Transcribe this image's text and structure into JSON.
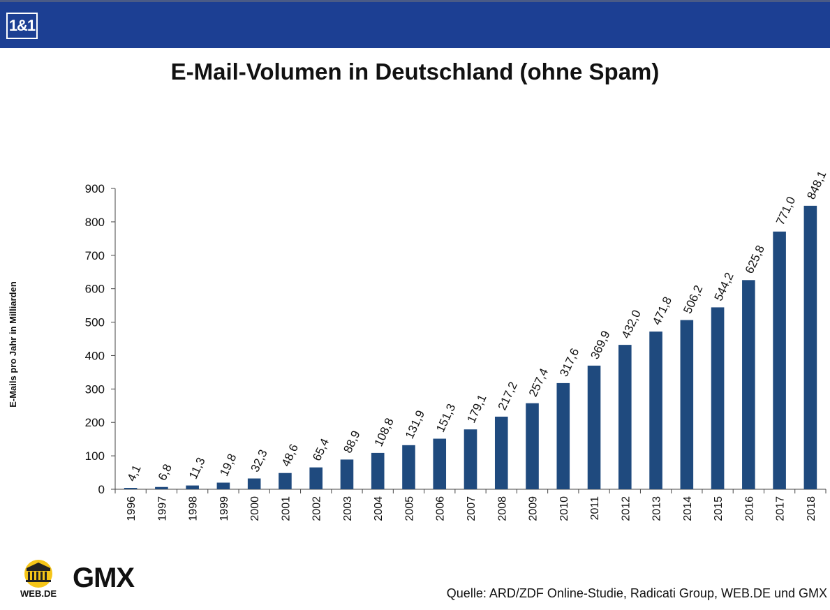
{
  "header": {
    "brand_logo": "1&1",
    "bar_color": "#1c3f93"
  },
  "title": "E-Mail-Volumen in Deutschland (ohne Spam)",
  "source": "Quelle: ARD/ZDF Online-Studie, Radicati Group, WEB.DE und GMX",
  "logos": {
    "webde": "WEB.DE",
    "gmx": "GMX"
  },
  "chart_data": {
    "type": "bar",
    "title": "E-Mail-Volumen in Deutschland (ohne Spam)",
    "xlabel": "",
    "ylabel": "E-Mails pro Jahr in Milliarden",
    "ylim": [
      0,
      900
    ],
    "yticks": [
      0,
      100,
      200,
      300,
      400,
      500,
      600,
      700,
      800,
      900
    ],
    "grid": false,
    "bar_color": "#1f4a7e",
    "categories": [
      "1996",
      "1997",
      "1998",
      "1999",
      "2000",
      "2001",
      "2002",
      "2003",
      "2004",
      "2005",
      "2006",
      "2007",
      "2008",
      "2009",
      "2010",
      "2011",
      "2012",
      "2013",
      "2014",
      "2015",
      "2016",
      "2017",
      "2018"
    ],
    "values": [
      4.1,
      6.8,
      11.3,
      19.8,
      32.3,
      48.6,
      65.4,
      88.9,
      108.8,
      131.9,
      151.3,
      179.1,
      217.2,
      257.4,
      317.6,
      369.9,
      432.0,
      471.8,
      506.2,
      544.2,
      625.8,
      771.0,
      848.1
    ],
    "data_labels": [
      "4,1",
      "6,8",
      "11,3",
      "19,8",
      "32,3",
      "48,6",
      "65,4",
      "88,9",
      "108,8",
      "131,9",
      "151,3",
      "179,1",
      "217,2",
      "257,4",
      "317,6",
      "369,9",
      "432,0",
      "471,8",
      "506,2",
      "544,2",
      "625,8",
      "771,0",
      "848,1"
    ]
  }
}
